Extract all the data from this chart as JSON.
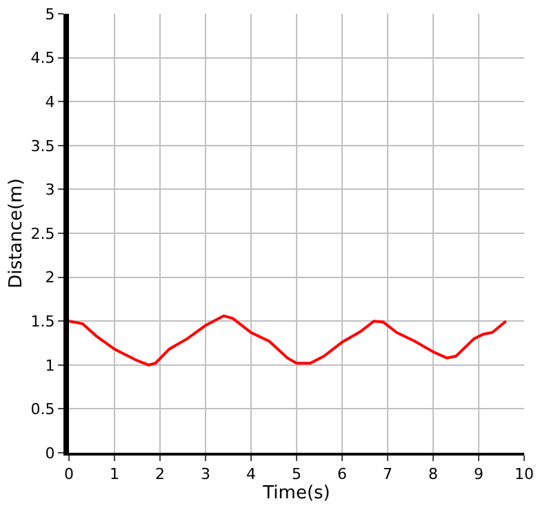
{
  "chart_data": {
    "type": "line",
    "xlabel": "Time(s)",
    "ylabel": "Distance(m)",
    "x": [
      0,
      0.3,
      0.6,
      1,
      1.5,
      1.75,
      1.9,
      2.2,
      2.6,
      3,
      3.4,
      3.6,
      4,
      4.4,
      4.8,
      5,
      5.3,
      5.6,
      6,
      6.4,
      6.7,
      6.9,
      7.2,
      7.6,
      8,
      8.3,
      8.5,
      8.9,
      9.1,
      9.3,
      9.6
    ],
    "series": [
      {
        "color": "#ff0000",
        "values": [
          1.5,
          1.47,
          1.33,
          1.18,
          1.05,
          1.0,
          1.02,
          1.18,
          1.3,
          1.45,
          1.56,
          1.53,
          1.37,
          1.27,
          1.08,
          1.02,
          1.02,
          1.1,
          1.26,
          1.38,
          1.5,
          1.49,
          1.37,
          1.27,
          1.15,
          1.08,
          1.1,
          1.3,
          1.35,
          1.37,
          1.5
        ]
      }
    ],
    "xlim": [
      0,
      10
    ],
    "xticks": [
      0,
      1,
      2,
      3,
      4,
      5,
      6,
      7,
      8,
      9,
      10
    ],
    "ylim": [
      0,
      5
    ],
    "yticks": [
      0,
      0.5,
      1,
      1.5,
      2,
      2.5,
      3,
      3.5,
      4,
      4.5,
      5
    ],
    "grid": true,
    "marker": "none",
    "line_style": "solid"
  }
}
